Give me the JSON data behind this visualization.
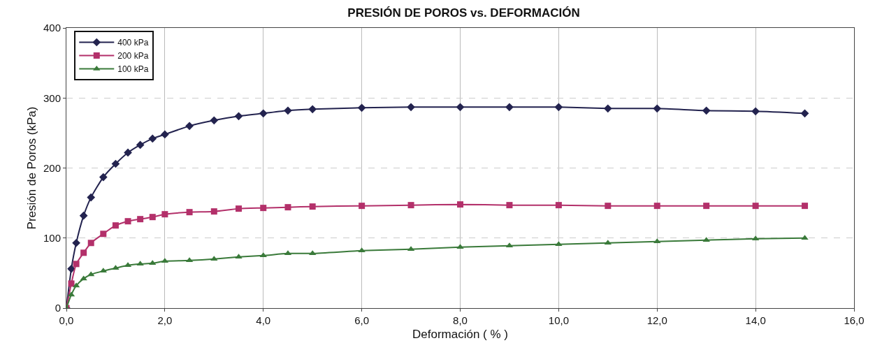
{
  "chart_data": {
    "type": "line",
    "title": "PRESIÓN DE POROS vs. DEFORMACIÓN",
    "xlabel": "Deformación ( % )",
    "ylabel": "Presión de Poros (kPa)",
    "x": [
      0,
      0.1,
      0.2,
      0.35,
      0.5,
      0.75,
      1,
      1.25,
      1.5,
      1.75,
      2,
      2.5,
      3,
      3.5,
      4,
      4.5,
      5,
      6,
      7,
      8,
      9,
      10,
      11,
      12,
      13,
      14,
      15
    ],
    "series": [
      {
        "name": "400 kPa",
        "color": "#23234f",
        "marker": "diamond",
        "values": [
          0,
          56,
          93,
          132,
          158,
          187,
          206,
          222,
          233,
          242,
          248,
          260,
          268,
          274,
          278,
          282,
          284,
          286,
          287,
          287,
          287,
          287,
          285,
          285,
          282,
          281,
          278
        ]
      },
      {
        "name": "200 kPa",
        "color": "#b3306a",
        "marker": "square",
        "values": [
          0,
          35,
          63,
          79,
          93,
          106,
          118,
          124,
          127,
          130,
          134,
          137,
          138,
          142,
          143,
          144,
          145,
          146,
          147,
          148,
          147,
          147,
          146,
          146,
          146,
          146,
          146
        ]
      },
      {
        "name": "100 kPa",
        "color": "#3a7a3a",
        "marker": "triangle",
        "values": [
          0,
          19,
          32,
          42,
          48,
          53,
          57,
          61,
          63,
          64,
          67,
          68,
          70,
          73,
          75,
          78,
          78,
          82,
          84,
          87,
          89,
          91,
          93,
          95,
          97,
          99,
          100
        ]
      }
    ],
    "xlim": [
      0,
      16
    ],
    "xticks": [
      {
        "value": 0,
        "label": "0,0"
      },
      {
        "value": 2,
        "label": "2,0"
      },
      {
        "value": 4,
        "label": "4,0"
      },
      {
        "value": 6,
        "label": "6,0"
      },
      {
        "value": 8,
        "label": "8,0"
      },
      {
        "value": 10,
        "label": "10,0"
      },
      {
        "value": 12,
        "label": "12,0"
      },
      {
        "value": 14,
        "label": "14,0"
      },
      {
        "value": 16,
        "label": "16,0"
      }
    ],
    "ylim": [
      0,
      400
    ],
    "yticks": [
      0,
      100,
      200,
      300,
      400
    ],
    "grid": true,
    "legend": "top left",
    "line_style": "solid"
  }
}
